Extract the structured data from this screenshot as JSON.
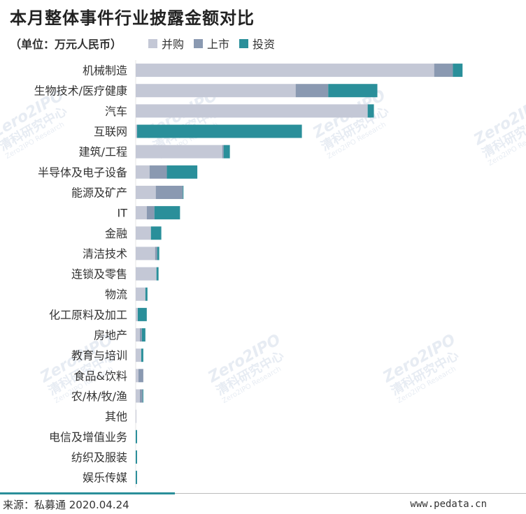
{
  "title": "本月整体事件行业披露金额对比",
  "unit_label": "（单位：万元人民币）",
  "source": "来源：私募通 2020.04.24",
  "website": "www.pedata.cn",
  "watermark": {
    "brand": "Zero2IPO",
    "cn": "清科研究中心",
    "en": "Zero2IPO Research"
  },
  "colors": {
    "ma": "#c4c8d6",
    "ipo": "#8a99b1",
    "invest": "#2a8f9a"
  },
  "chart_data": {
    "type": "bar",
    "orientation": "horizontal",
    "stacked": true,
    "categories": [
      "机械制造",
      "生物技术/医疗健康",
      "汽车",
      "互联网",
      "建筑/工程",
      "半导体及电子设备",
      "能源及矿产",
      "IT",
      "金融",
      "清洁技术",
      "连锁及零售",
      "物流",
      "化工原料及加工",
      "房地产",
      "教育与培训",
      "食品&饮料",
      "农/林/牧/渔",
      "其他",
      "电信及增值业务",
      "纺织及服装",
      "娱乐传媒"
    ],
    "series": [
      {
        "name": "并购",
        "values": [
          431,
          231,
          335,
          2,
          125,
          20,
          29,
          16,
          22,
          28,
          30,
          14,
          3,
          6,
          8,
          4,
          6,
          1,
          0,
          0,
          0
        ]
      },
      {
        "name": "上市",
        "values": [
          27,
          47,
          0,
          0,
          2,
          25,
          39,
          11,
          0,
          3,
          0,
          0,
          0,
          3,
          0,
          7,
          4,
          0,
          0,
          0,
          0
        ]
      },
      {
        "name": "投资",
        "values": [
          14,
          71,
          9,
          238,
          9,
          44,
          1,
          37,
          15,
          3,
          3,
          3,
          13,
          5,
          3,
          0,
          1,
          0,
          2,
          2,
          2
        ]
      }
    ],
    "xlim": [
      0,
      500
    ],
    "grid": false,
    "legend_position": "top"
  }
}
